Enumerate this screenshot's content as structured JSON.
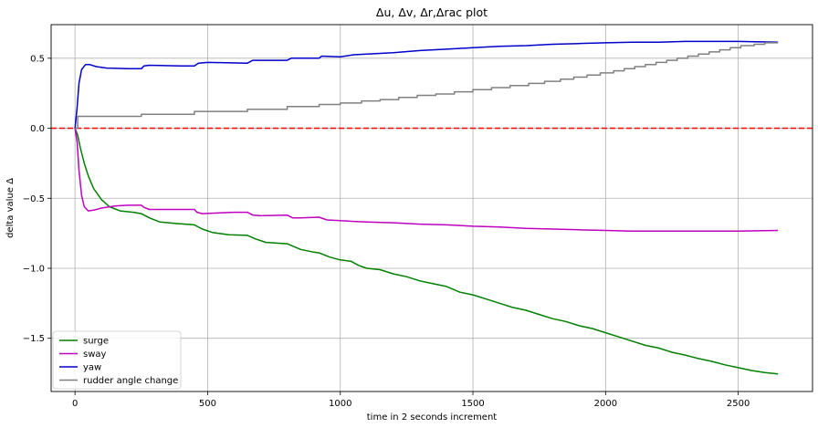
{
  "chart_data": {
    "type": "line",
    "title": "Δu, Δv, Δr,Δrac  plot",
    "xlabel": "time in 2 seconds increment",
    "ylabel": "delta value Δ",
    "xlim": [
      -90,
      2780
    ],
    "ylim": [
      -1.88,
      0.74
    ],
    "xticks": [
      0,
      500,
      1000,
      1500,
      2000,
      2500
    ],
    "xtick_labels": [
      "0",
      "500",
      "1000",
      "1500",
      "2000",
      "2500"
    ],
    "yticks": [
      -1.5,
      -1.0,
      -0.5,
      0.0,
      0.5
    ],
    "ytick_labels": [
      "−1.5",
      "−1.0",
      "−0.5",
      "0.0",
      "0.5"
    ],
    "grid": true,
    "legend_position": "lower-left",
    "reference_line": {
      "y": 0.0,
      "color": "#ff0000",
      "style": "dashed"
    },
    "series": [
      {
        "name": "surge",
        "color": "#008000",
        "points": [
          [
            0,
            0
          ],
          [
            10,
            -0.05
          ],
          [
            20,
            -0.14
          ],
          [
            35,
            -0.25
          ],
          [
            50,
            -0.34
          ],
          [
            70,
            -0.43
          ],
          [
            100,
            -0.51
          ],
          [
            130,
            -0.56
          ],
          [
            170,
            -0.59
          ],
          [
            220,
            -0.6
          ],
          [
            250,
            -0.61
          ],
          [
            280,
            -0.64
          ],
          [
            320,
            -0.67
          ],
          [
            380,
            -0.68
          ],
          [
            450,
            -0.69
          ],
          [
            480,
            -0.72
          ],
          [
            520,
            -0.745
          ],
          [
            580,
            -0.76
          ],
          [
            650,
            -0.765
          ],
          [
            680,
            -0.79
          ],
          [
            720,
            -0.815
          ],
          [
            800,
            -0.825
          ],
          [
            850,
            -0.865
          ],
          [
            900,
            -0.885
          ],
          [
            920,
            -0.89
          ],
          [
            960,
            -0.92
          ],
          [
            1000,
            -0.94
          ],
          [
            1040,
            -0.95
          ],
          [
            1070,
            -0.98
          ],
          [
            1100,
            -1.0
          ],
          [
            1150,
            -1.01
          ],
          [
            1200,
            -1.04
          ],
          [
            1250,
            -1.06
          ],
          [
            1300,
            -1.09
          ],
          [
            1350,
            -1.11
          ],
          [
            1400,
            -1.13
          ],
          [
            1450,
            -1.17
          ],
          [
            1500,
            -1.19
          ],
          [
            1550,
            -1.22
          ],
          [
            1600,
            -1.25
          ],
          [
            1650,
            -1.28
          ],
          [
            1700,
            -1.3
          ],
          [
            1750,
            -1.33
          ],
          [
            1800,
            -1.36
          ],
          [
            1850,
            -1.38
          ],
          [
            1900,
            -1.41
          ],
          [
            1950,
            -1.43
          ],
          [
            2000,
            -1.46
          ],
          [
            2050,
            -1.49
          ],
          [
            2100,
            -1.52
          ],
          [
            2150,
            -1.55
          ],
          [
            2200,
            -1.57
          ],
          [
            2250,
            -1.6
          ],
          [
            2300,
            -1.62
          ],
          [
            2350,
            -1.645
          ],
          [
            2400,
            -1.665
          ],
          [
            2450,
            -1.69
          ],
          [
            2500,
            -1.71
          ],
          [
            2550,
            -1.73
          ],
          [
            2600,
            -1.745
          ],
          [
            2650,
            -1.755
          ]
        ]
      },
      {
        "name": "sway",
        "color": "#bf00bf",
        "points": [
          [
            0,
            0
          ],
          [
            8,
            -0.1
          ],
          [
            15,
            -0.3
          ],
          [
            25,
            -0.48
          ],
          [
            35,
            -0.56
          ],
          [
            50,
            -0.59
          ],
          [
            70,
            -0.585
          ],
          [
            100,
            -0.57
          ],
          [
            150,
            -0.555
          ],
          [
            200,
            -0.55
          ],
          [
            250,
            -0.55
          ],
          [
            260,
            -0.565
          ],
          [
            280,
            -0.58
          ],
          [
            350,
            -0.58
          ],
          [
            450,
            -0.58
          ],
          [
            460,
            -0.6
          ],
          [
            480,
            -0.61
          ],
          [
            600,
            -0.6
          ],
          [
            650,
            -0.6
          ],
          [
            670,
            -0.62
          ],
          [
            700,
            -0.625
          ],
          [
            800,
            -0.62
          ],
          [
            820,
            -0.64
          ],
          [
            850,
            -0.64
          ],
          [
            920,
            -0.635
          ],
          [
            950,
            -0.655
          ],
          [
            1000,
            -0.66
          ],
          [
            1050,
            -0.665
          ],
          [
            1100,
            -0.67
          ],
          [
            1200,
            -0.675
          ],
          [
            1300,
            -0.685
          ],
          [
            1400,
            -0.69
          ],
          [
            1500,
            -0.7
          ],
          [
            1600,
            -0.705
          ],
          [
            1700,
            -0.715
          ],
          [
            1800,
            -0.72
          ],
          [
            1900,
            -0.725
          ],
          [
            2000,
            -0.73
          ],
          [
            2100,
            -0.735
          ],
          [
            2200,
            -0.735
          ],
          [
            2300,
            -0.735
          ],
          [
            2400,
            -0.735
          ],
          [
            2500,
            -0.735
          ],
          [
            2650,
            -0.73
          ]
        ]
      },
      {
        "name": "yaw",
        "color": "#0000cc",
        "points": [
          [
            0,
            0
          ],
          [
            8,
            0.15
          ],
          [
            15,
            0.32
          ],
          [
            25,
            0.42
          ],
          [
            40,
            0.455
          ],
          [
            55,
            0.455
          ],
          [
            80,
            0.44
          ],
          [
            120,
            0.43
          ],
          [
            200,
            0.425
          ],
          [
            250,
            0.425
          ],
          [
            260,
            0.445
          ],
          [
            280,
            0.45
          ],
          [
            400,
            0.445
          ],
          [
            450,
            0.445
          ],
          [
            465,
            0.465
          ],
          [
            500,
            0.47
          ],
          [
            650,
            0.465
          ],
          [
            670,
            0.485
          ],
          [
            700,
            0.485
          ],
          [
            800,
            0.485
          ],
          [
            815,
            0.5
          ],
          [
            900,
            0.5
          ],
          [
            920,
            0.5
          ],
          [
            930,
            0.515
          ],
          [
            1000,
            0.51
          ],
          [
            1050,
            0.525
          ],
          [
            1100,
            0.53
          ],
          [
            1200,
            0.54
          ],
          [
            1300,
            0.555
          ],
          [
            1400,
            0.565
          ],
          [
            1500,
            0.575
          ],
          [
            1600,
            0.585
          ],
          [
            1700,
            0.59
          ],
          [
            1800,
            0.6
          ],
          [
            1900,
            0.605
          ],
          [
            2000,
            0.61
          ],
          [
            2100,
            0.615
          ],
          [
            2200,
            0.615
          ],
          [
            2300,
            0.62
          ],
          [
            2400,
            0.62
          ],
          [
            2500,
            0.62
          ],
          [
            2650,
            0.615
          ]
        ]
      },
      {
        "name": "rudder angle change",
        "color": "#808080",
        "steps": [
          [
            0,
            0.0
          ],
          [
            10,
            0.085
          ],
          [
            250,
            0.1
          ],
          [
            450,
            0.12
          ],
          [
            650,
            0.135
          ],
          [
            800,
            0.155
          ],
          [
            920,
            0.17
          ],
          [
            1000,
            0.18
          ],
          [
            1080,
            0.195
          ],
          [
            1150,
            0.205
          ],
          [
            1220,
            0.22
          ],
          [
            1290,
            0.235
          ],
          [
            1360,
            0.245
          ],
          [
            1430,
            0.26
          ],
          [
            1500,
            0.275
          ],
          [
            1570,
            0.29
          ],
          [
            1640,
            0.305
          ],
          [
            1710,
            0.32
          ],
          [
            1770,
            0.335
          ],
          [
            1830,
            0.35
          ],
          [
            1880,
            0.365
          ],
          [
            1930,
            0.38
          ],
          [
            1980,
            0.395
          ],
          [
            2030,
            0.41
          ],
          [
            2070,
            0.425
          ],
          [
            2110,
            0.44
          ],
          [
            2150,
            0.455
          ],
          [
            2190,
            0.47
          ],
          [
            2230,
            0.485
          ],
          [
            2270,
            0.5
          ],
          [
            2310,
            0.515
          ],
          [
            2350,
            0.53
          ],
          [
            2390,
            0.545
          ],
          [
            2430,
            0.56
          ],
          [
            2470,
            0.575
          ],
          [
            2510,
            0.59
          ],
          [
            2560,
            0.6
          ],
          [
            2600,
            0.61
          ]
        ],
        "x_end": 2650
      }
    ]
  }
}
